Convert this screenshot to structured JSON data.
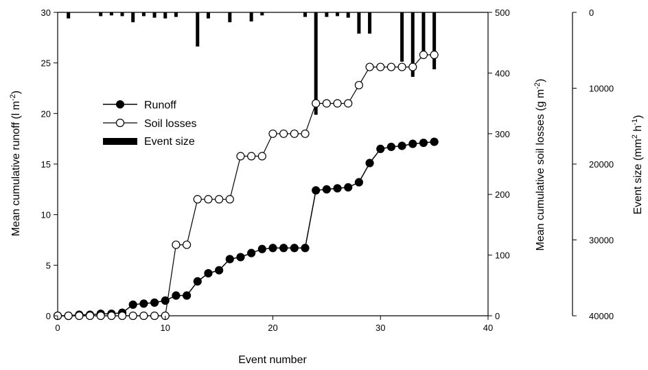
{
  "chart_data": {
    "type": "line",
    "title": "",
    "xlabel": "Event number",
    "ylabel_left": "Mean cumulative runoff (l m",
    "ylabel_left_sup": "-2",
    "ylabel_left_suffix": ")",
    "ylabel_right": "Mean cumulative soil losses (g m",
    "ylabel_right_sup": "-2",
    "ylabel_right_suffix": ")",
    "ylabel_far": "Event size (mm",
    "ylabel_far_sup1": "2",
    "ylabel_far_mid": " h",
    "ylabel_far_sup2": "-1",
    "ylabel_far_suffix": ")",
    "xlim": [
      0,
      40
    ],
    "ylim_left": [
      0,
      30
    ],
    "ylim_right": [
      0,
      500
    ],
    "ylim_far": [
      0,
      40000
    ],
    "far_axis_inverted": true,
    "x_ticks": [
      "0",
      "10",
      "20",
      "30",
      "40"
    ],
    "y_left_ticks": [
      "0",
      "5",
      "10",
      "15",
      "20",
      "25",
      "30"
    ],
    "y_right_ticks": [
      "0",
      "100",
      "200",
      "300",
      "400",
      "500"
    ],
    "y_far_ticks": [
      "0",
      "10000",
      "20000",
      "30000",
      "40000"
    ],
    "legend_position": "center-left",
    "legend": [
      "Runoff",
      "Soil losses",
      "Event size"
    ],
    "series": [
      {
        "name": "Runoff",
        "axis": "left",
        "marker": "filled-circle",
        "x": [
          0,
          1,
          2,
          3,
          4,
          5,
          6,
          7,
          8,
          9,
          10,
          11,
          12,
          13,
          14,
          15,
          16,
          17,
          18,
          19,
          20,
          21,
          22,
          23,
          24,
          25,
          26,
          27,
          28,
          29,
          30,
          31,
          32,
          33,
          34,
          35
        ],
        "values": [
          0,
          0,
          0.1,
          0.1,
          0.2,
          0.2,
          0.3,
          1.1,
          1.2,
          1.3,
          1.5,
          2.0,
          2.0,
          3.4,
          4.2,
          4.5,
          5.6,
          5.8,
          6.2,
          6.6,
          6.7,
          6.7,
          6.7,
          6.7,
          12.4,
          12.5,
          12.6,
          12.7,
          13.2,
          15.1,
          16.5,
          16.7,
          16.8,
          17.0,
          17.1,
          17.2
        ]
      },
      {
        "name": "Soil losses",
        "axis": "right",
        "marker": "open-circle",
        "x": [
          0,
          1,
          2,
          3,
          4,
          5,
          6,
          7,
          8,
          9,
          10,
          11,
          12,
          13,
          14,
          15,
          16,
          17,
          18,
          19,
          20,
          21,
          22,
          23,
          24,
          25,
          26,
          27,
          28,
          29,
          30,
          31,
          32,
          33,
          34,
          35
        ],
        "values": [
          0,
          0,
          0,
          0,
          0,
          0,
          0,
          0,
          0,
          0,
          0,
          117,
          117,
          192,
          192,
          192,
          192,
          263,
          263,
          263,
          300,
          300,
          300,
          300,
          350,
          350,
          350,
          350,
          380,
          410,
          410,
          410,
          410,
          410,
          430,
          430
        ]
      },
      {
        "name": "Event size",
        "axis": "far",
        "type": "bar",
        "x": [
          1,
          4,
          5,
          6,
          7,
          8,
          9,
          10,
          11,
          13,
          14,
          16,
          18,
          19,
          23,
          24,
          25,
          26,
          27,
          28,
          29,
          32,
          33,
          34,
          35
        ],
        "values": [
          800,
          500,
          400,
          500,
          1300,
          500,
          700,
          800,
          600,
          4500,
          800,
          1300,
          1200,
          400,
          600,
          13500,
          600,
          500,
          700,
          2800,
          2800,
          6500,
          8500,
          5500,
          7500
        ]
      }
    ]
  }
}
